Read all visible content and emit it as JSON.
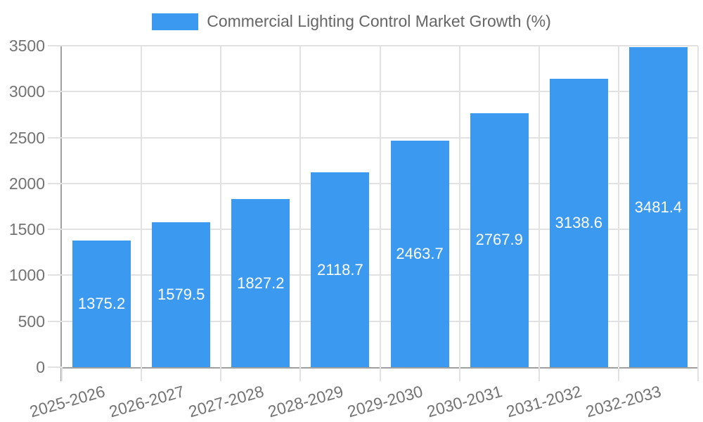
{
  "chart_data": {
    "type": "bar",
    "title": "Commercial Lighting Control Market Growth (%)",
    "categories": [
      "2025-2026",
      "2026-2027",
      "2027-2028",
      "2028-2029",
      "2029-2030",
      "2030-2031",
      "2031-2032",
      "2032-2033"
    ],
    "values": [
      1375.2,
      1579.5,
      1827.2,
      2118.7,
      2463.7,
      2767.9,
      3138.6,
      3481.4
    ],
    "value_labels": [
      "1375.2",
      "1579.5",
      "1827.2",
      "2118.7",
      "2463.7",
      "2767.9",
      "3138.6",
      "3481.4"
    ],
    "xlabel": "",
    "ylabel": "",
    "ylim": [
      0,
      3500
    ],
    "yticks": [
      0,
      500,
      1000,
      1500,
      2000,
      2500,
      3000,
      3500
    ],
    "grid": true,
    "legend_position": "top",
    "colors": {
      "bar": "#3b99f0",
      "grid": "#e2e2e2",
      "axis": "#a0a0a0",
      "tick_text": "#737373",
      "title_text": "#666666",
      "bar_label": "#ffffff"
    }
  }
}
